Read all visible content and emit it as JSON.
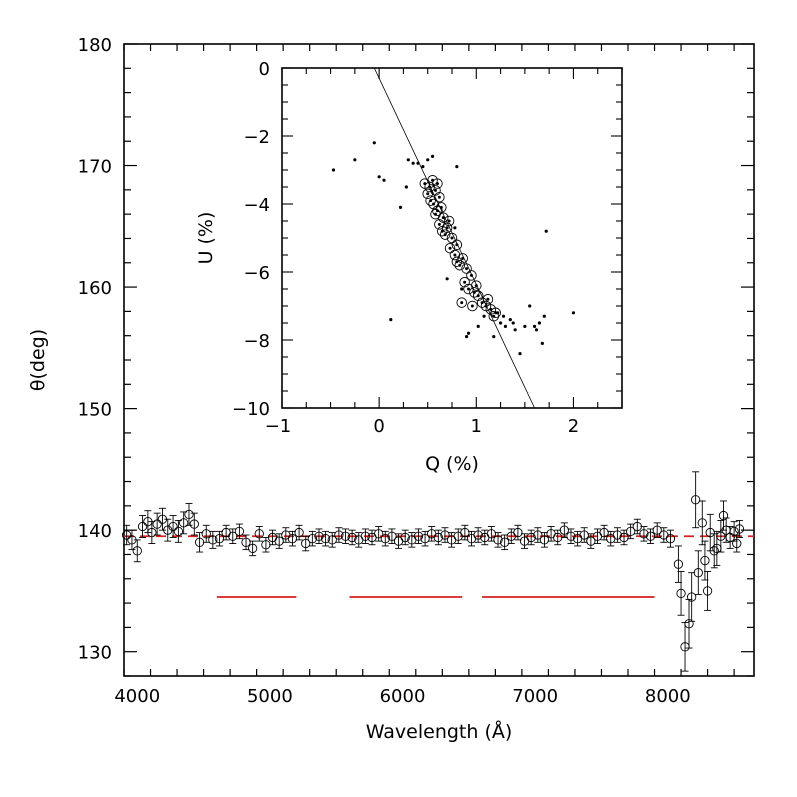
{
  "chart_data": [
    {
      "id": "main",
      "type": "scatter",
      "title": "",
      "xlabel": "Wavelength (Å)",
      "ylabel": "θ(deg)",
      "xlim": [
        3900,
        8650
      ],
      "ylim": [
        128,
        180
      ],
      "xticks": [
        4000,
        5000,
        6000,
        7000,
        8000
      ],
      "yticks": [
        130,
        140,
        150,
        160,
        170,
        180
      ],
      "marker": "open-circle-with-errorbar",
      "reference_line": {
        "y": 139.5,
        "style": "dashed",
        "color": "#d42020"
      },
      "segments": {
        "y": 134.5,
        "color": "#d42020",
        "ranges": [
          [
            4600,
            5200
          ],
          [
            5600,
            6450
          ],
          [
            6600,
            7900
          ]
        ]
      },
      "series": [
        {
          "name": "theta",
          "points": [
            [
              3920,
              139.6,
              0.8
            ],
            [
              3960,
              139.2,
              0.8
            ],
            [
              4000,
              138.3,
              0.9
            ],
            [
              4040,
              140.3,
              0.9
            ],
            [
              4080,
              140.7,
              0.9
            ],
            [
              4110,
              139.8,
              0.9
            ],
            [
              4150,
              140.5,
              0.9
            ],
            [
              4190,
              140.9,
              0.9
            ],
            [
              4230,
              140.0,
              0.9
            ],
            [
              4270,
              140.3,
              0.9
            ],
            [
              4310,
              139.9,
              0.9
            ],
            [
              4350,
              140.6,
              0.9
            ],
            [
              4390,
              141.3,
              0.9
            ],
            [
              4430,
              140.5,
              0.9
            ],
            [
              4470,
              139.0,
              0.8
            ],
            [
              4520,
              139.7,
              0.7
            ],
            [
              4570,
              139.2,
              0.7
            ],
            [
              4620,
              139.3,
              0.6
            ],
            [
              4670,
              139.8,
              0.6
            ],
            [
              4720,
              139.5,
              0.6
            ],
            [
              4770,
              139.9,
              0.6
            ],
            [
              4820,
              139.0,
              0.6
            ],
            [
              4870,
              138.5,
              0.6
            ],
            [
              4920,
              139.7,
              0.6
            ],
            [
              4970,
              138.8,
              0.6
            ],
            [
              5020,
              139.4,
              0.6
            ],
            [
              5070,
              139.1,
              0.6
            ],
            [
              5120,
              139.6,
              0.6
            ],
            [
              5170,
              139.3,
              0.6
            ],
            [
              5220,
              139.8,
              0.6
            ],
            [
              5270,
              138.9,
              0.6
            ],
            [
              5320,
              139.3,
              0.6
            ],
            [
              5370,
              139.5,
              0.6
            ],
            [
              5420,
              139.3,
              0.6
            ],
            [
              5470,
              139.2,
              0.6
            ],
            [
              5520,
              139.6,
              0.6
            ],
            [
              5570,
              139.5,
              0.6
            ],
            [
              5620,
              139.4,
              0.6
            ],
            [
              5670,
              139.2,
              0.6
            ],
            [
              5720,
              139.5,
              0.6
            ],
            [
              5770,
              139.4,
              0.6
            ],
            [
              5820,
              139.7,
              0.6
            ],
            [
              5870,
              139.3,
              0.6
            ],
            [
              5920,
              139.5,
              0.6
            ],
            [
              5970,
              139.1,
              0.6
            ],
            [
              6020,
              139.4,
              0.6
            ],
            [
              6070,
              139.2,
              0.6
            ],
            [
              6120,
              139.5,
              0.6
            ],
            [
              6170,
              139.3,
              0.6
            ],
            [
              6220,
              139.7,
              0.6
            ],
            [
              6270,
              139.4,
              0.6
            ],
            [
              6320,
              139.6,
              0.6
            ],
            [
              6370,
              139.2,
              0.6
            ],
            [
              6420,
              139.5,
              0.6
            ],
            [
              6470,
              139.8,
              0.6
            ],
            [
              6520,
              139.3,
              0.6
            ],
            [
              6570,
              139.6,
              0.6
            ],
            [
              6620,
              139.4,
              0.6
            ],
            [
              6670,
              139.7,
              0.6
            ],
            [
              6720,
              139.2,
              0.6
            ],
            [
              6770,
              139.0,
              0.6
            ],
            [
              6820,
              139.5,
              0.6
            ],
            [
              6870,
              139.8,
              0.6
            ],
            [
              6920,
              139.1,
              0.6
            ],
            [
              6970,
              139.4,
              0.6
            ],
            [
              7020,
              139.6,
              0.6
            ],
            [
              7070,
              139.2,
              0.6
            ],
            [
              7120,
              139.7,
              0.6
            ],
            [
              7170,
              139.4,
              0.6
            ],
            [
              7220,
              140.0,
              0.6
            ],
            [
              7270,
              139.5,
              0.6
            ],
            [
              7320,
              139.3,
              0.6
            ],
            [
              7370,
              139.6,
              0.6
            ],
            [
              7420,
              139.1,
              0.6
            ],
            [
              7470,
              139.5,
              0.6
            ],
            [
              7520,
              139.8,
              0.6
            ],
            [
              7570,
              139.3,
              0.6
            ],
            [
              7620,
              139.6,
              0.6
            ],
            [
              7670,
              139.4,
              0.6
            ],
            [
              7720,
              139.9,
              0.6
            ],
            [
              7770,
              140.3,
              0.6
            ],
            [
              7820,
              139.7,
              0.6
            ],
            [
              7870,
              139.5,
              0.6
            ],
            [
              7920,
              140.0,
              0.6
            ],
            [
              7970,
              139.6,
              0.6
            ],
            [
              8020,
              139.3,
              0.7
            ],
            [
              8080,
              137.2,
              1.5
            ],
            [
              8100,
              134.8,
              1.8
            ],
            [
              8130,
              130.4,
              2.0
            ],
            [
              8160,
              132.3,
              2.0
            ],
            [
              8180,
              134.5,
              2.0
            ],
            [
              8210,
              142.5,
              2.3
            ],
            [
              8230,
              136.5,
              1.8
            ],
            [
              8260,
              140.6,
              1.8
            ],
            [
              8280,
              137.5,
              1.6
            ],
            [
              8300,
              135.0,
              1.6
            ],
            [
              8320,
              139.8,
              1.5
            ],
            [
              8350,
              138.3,
              1.4
            ],
            [
              8370,
              138.5,
              1.4
            ],
            [
              8400,
              139.5,
              1.3
            ],
            [
              8420,
              141.2,
              1.2
            ],
            [
              8440,
              140.0,
              1.0
            ],
            [
              8470,
              139.4,
              0.9
            ],
            [
              8500,
              139.9,
              0.8
            ],
            [
              8520,
              138.9,
              0.7
            ],
            [
              8540,
              140.1,
              0.7
            ]
          ]
        }
      ]
    },
    {
      "id": "inset",
      "type": "scatter",
      "title": "",
      "xlabel": "Q (%)",
      "ylabel": "U (%)",
      "xlim": [
        -1,
        2.5
      ],
      "ylim": [
        -10,
        0
      ],
      "xticks": [
        -1,
        0,
        1,
        2
      ],
      "yticks": [
        0,
        -2,
        -4,
        -6,
        -8,
        -10
      ],
      "fit_line": {
        "x": [
          -0.05,
          1.6
        ],
        "y": [
          0.1,
          -10.0
        ]
      },
      "series": [
        {
          "name": "circled",
          "marker": "open-circle-with-dot",
          "points": [
            [
              0.47,
              -3.4
            ],
            [
              0.52,
              -3.5
            ],
            [
              0.55,
              -3.3
            ],
            [
              0.58,
              -3.6
            ],
            [
              0.6,
              -3.4
            ],
            [
              0.62,
              -3.8
            ],
            [
              0.56,
              -4.0
            ],
            [
              0.6,
              -4.2
            ],
            [
              0.64,
              -4.1
            ],
            [
              0.66,
              -4.4
            ],
            [
              0.62,
              -4.6
            ],
            [
              0.7,
              -4.7
            ],
            [
              0.72,
              -4.5
            ],
            [
              0.68,
              -4.9
            ],
            [
              0.75,
              -5.0
            ],
            [
              0.8,
              -5.2
            ],
            [
              0.78,
              -5.5
            ],
            [
              0.83,
              -5.8
            ],
            [
              0.86,
              -5.6
            ],
            [
              0.9,
              -5.9
            ],
            [
              0.95,
              -6.1
            ],
            [
              0.88,
              -6.3
            ],
            [
              0.92,
              -6.5
            ],
            [
              0.98,
              -6.6
            ],
            [
              1.02,
              -6.7
            ],
            [
              1.06,
              -6.9
            ],
            [
              1.1,
              -7.0
            ],
            [
              0.96,
              -7.0
            ],
            [
              0.85,
              -6.9
            ],
            [
              1.15,
              -7.1
            ],
            [
              1.2,
              -7.2
            ],
            [
              0.5,
              -3.7
            ],
            [
              0.53,
              -3.9
            ],
            [
              0.58,
              -4.3
            ],
            [
              0.65,
              -4.8
            ],
            [
              0.73,
              -5.3
            ],
            [
              0.8,
              -5.7
            ],
            [
              1.0,
              -6.4
            ],
            [
              1.12,
              -6.8
            ],
            [
              1.18,
              -7.3
            ]
          ]
        },
        {
          "name": "dots",
          "marker": "dot",
          "points": [
            [
              -0.47,
              -3.0
            ],
            [
              -0.05,
              -2.2
            ],
            [
              -0.25,
              -2.7
            ],
            [
              0.0,
              -3.2
            ],
            [
              0.05,
              -3.3
            ],
            [
              0.3,
              -2.7
            ],
            [
              0.35,
              -2.8
            ],
            [
              0.4,
              -2.8
            ],
            [
              0.45,
              -2.9
            ],
            [
              0.5,
              -2.7
            ],
            [
              0.55,
              -2.6
            ],
            [
              0.8,
              -2.9
            ],
            [
              0.28,
              -3.5
            ],
            [
              0.22,
              -4.1
            ],
            [
              0.7,
              -6.2
            ],
            [
              0.12,
              -7.4
            ],
            [
              0.92,
              -7.8
            ],
            [
              1.25,
              -7.5
            ],
            [
              1.3,
              -7.6
            ],
            [
              1.35,
              -7.4
            ],
            [
              1.4,
              -7.7
            ],
            [
              1.45,
              -8.4
            ],
            [
              1.55,
              -7.0
            ],
            [
              1.6,
              -7.6
            ],
            [
              1.65,
              -7.5
            ],
            [
              1.68,
              -8.1
            ],
            [
              1.7,
              -7.3
            ],
            [
              1.72,
              -4.8
            ],
            [
              2.0,
              -7.2
            ],
            [
              1.22,
              -7.2
            ],
            [
              1.28,
              -7.3
            ],
            [
              1.5,
              -7.6
            ],
            [
              1.62,
              -7.7
            ],
            [
              1.18,
              -7.9
            ],
            [
              1.38,
              -7.5
            ],
            [
              1.08,
              -7.3
            ],
            [
              1.02,
              -7.6
            ],
            [
              0.9,
              -7.9
            ],
            [
              0.85,
              -6.5
            ],
            [
              0.78,
              -4.7
            ]
          ]
        }
      ]
    }
  ]
}
